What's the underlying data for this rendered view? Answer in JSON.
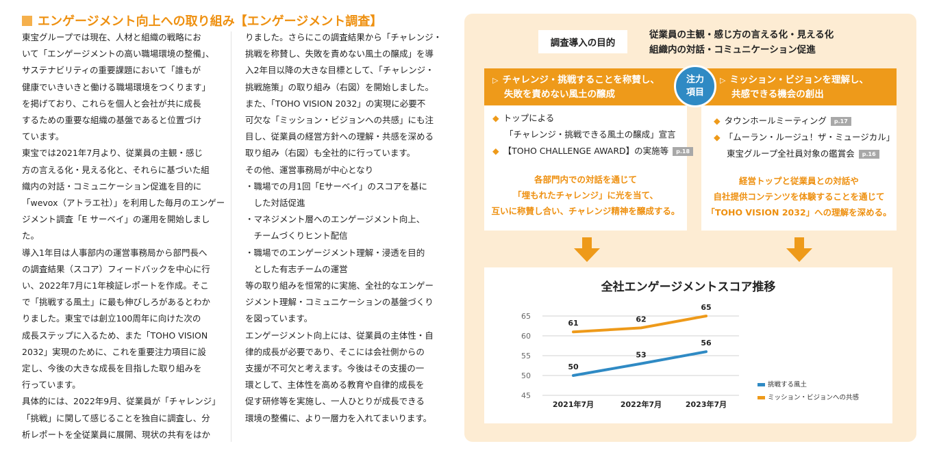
{
  "heading": "エンゲージメント向上への取り組み【エンゲージメント調査】",
  "col1": [
    "東宝グループでは現在、人材と組織の戦略にお",
    "いて「エンゲージメントの高い職場環境の整備」、",
    "サステナビリティの重要課題において「誰もが",
    "健康でいきいきと働ける職場環境をつくります」",
    "を掲げており、これらを個人と会社が共に成長",
    "するための重要な組織の基盤であると位置づけ",
    "ています。",
    "東宝では2021年7月より、従業員の主観・感じ",
    "方の言える化・見える化と、それらに基づいた組",
    "織内の対話・コミュニケーション促進を目的に",
    "「wevox（アトラエ社）」を利用した毎月のエンゲー",
    "ジメント調査「E サーベイ」の運用を開始しまし",
    "た。",
    "導入1年目は人事部内の運営事務局から部門長へ",
    "の調査結果（スコア）フィードバックを中心に行",
    "い、2022年7月に1年検証レポートを作成。そこ",
    "で「挑戦する風土」に最も伸びしろがあるとわか",
    "りました。東宝では創立100周年に向けた次の",
    "成長ステップに入るため、また「TOHO VISION",
    "2032」実現のために、これを重要注力項目に設",
    "定し、今後の大きな成長を目指した取り組みを",
    "行っています。",
    "具体的には、2022年9月、従業員が「チャレンジ」",
    "「挑戦」に関して感じることを独自に調査し、分",
    "析レポートを全従業員に展開、現状の共有をはか"
  ],
  "col2": [
    "りました。さらにこの調査結果から「チャレンジ・",
    "挑戦を称賛し、失敗を責めない風土の醸成」を導",
    "入2年目以降の大きな目標として、「チャレンジ・",
    "挑戦施策」の取り組み（右図）を開始しました。",
    "また、「TOHO VISION 2032」の実現に必要不",
    "可欠な「ミッション・ビジョンへの共感」にも注",
    "目し、従業員の経営方針への理解・共感を深める",
    "取り組み（右図）も全社的に行っています。",
    "その他、運営事務局が中心となり",
    "・職場での月1回「Eサーベイ」のスコアを基に",
    "　した対話促進",
    "・マネジメント層へのエンゲージメント向上、",
    "　チームづくりヒント配信",
    "・職場でのエンゲージメント理解・浸透を目的",
    "　とした有志チームの運営",
    "等の取り組みを恒常的に実施、全社的なエンゲー",
    "ジメント理解・コミュニケーションの基盤づくり",
    "を図っています。",
    "エンゲージメント向上には、従業員の主体性・自",
    "律的成長が必要であり、そこには会社側からの",
    "支援が不可欠と考えます。今後はその支援の一",
    "環として、主体性を高める教育や自律的成長を",
    "促す研修等を実施し、一人ひとりが成長できる",
    "環境の整備に、より一層力を入れてまいります。"
  ],
  "purpose": {
    "label": "調査導入の目的",
    "line1": "従業員の主観・感じ方の言える化・見える化",
    "line2": "組織内の対話・コミュニケーション促進"
  },
  "focus": {
    "badge1": "注力",
    "badge2": "項目",
    "left_title1": "チャレンジ・挑戦することを称賛し、",
    "left_title2": "失敗を責めない風土の醸成",
    "right_title1": "ミッション・ビジョンを理解し、",
    "right_title2": "共感できる機会の創出",
    "arrow": "▷",
    "diamond": "◆"
  },
  "left_box": {
    "item1a": "トップによる",
    "item1b": "「チャレンジ・挑戦できる風土の醸成」宣言",
    "item2": "【TOHO CHALLENGE AWARD】の実施等",
    "item2_page": "p.18",
    "note1": "各部門内での対話を通じて",
    "note2": "「埋もれたチャレンジ」に光を当て、",
    "note3": "互いに称賛し合い、チャレンジ精神を醸成する。"
  },
  "right_box": {
    "item1": "タウンホールミーティング",
    "item1_page": "p.17",
    "item2a": "「ムーラン・ルージュ！ザ・ミュージカル」",
    "item2b": "東宝グループ全社員対象の鑑賞会",
    "item2_page": "p.16",
    "note1": "経営トップと従業員との対話や",
    "note2": "自社提供コンテンツを体験することを通じて",
    "note3": "「TOHO VISION 2032」への理解を深める。"
  },
  "colors": {
    "orange": "#ee9a1a",
    "blue": "#2f8ac4",
    "panel": "#fdecd3"
  },
  "chart_data": {
    "type": "line",
    "title": "全社エンゲージメントスコア推移",
    "categories": [
      "2021年7月",
      "2022年7月",
      "2023年7月"
    ],
    "series": [
      {
        "name": "挑戦する風土",
        "values": [
          50,
          53,
          56
        ],
        "color": "#2f8ac4"
      },
      {
        "name": "ミッション・ビジョンへの共感",
        "values": [
          61,
          62,
          65
        ],
        "color": "#ee9a1a"
      }
    ],
    "ylim": [
      45,
      65
    ],
    "yticks": [
      45,
      50,
      55,
      60,
      65
    ],
    "grid": true,
    "legend": "right"
  }
}
